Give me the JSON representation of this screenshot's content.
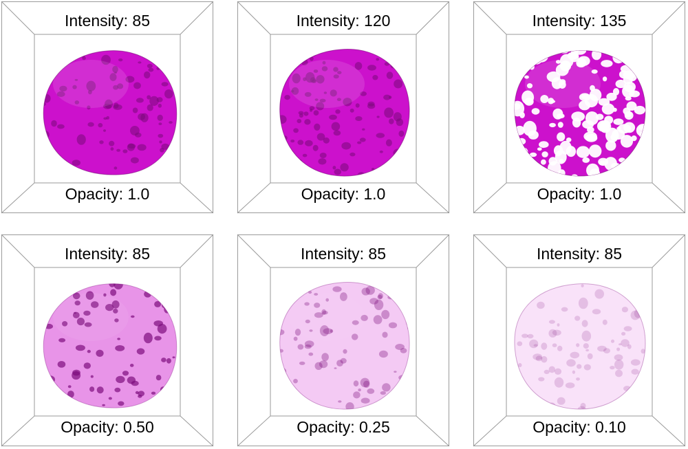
{
  "panels": [
    {
      "intensity_label": "Intensity: 85",
      "opacity_label": "Opacity: 1.0",
      "intensity": 85,
      "opacity": 1.0
    },
    {
      "intensity_label": "Intensity: 120",
      "opacity_label": "Opacity: 1.0",
      "intensity": 120,
      "opacity": 1.0
    },
    {
      "intensity_label": "Intensity: 135",
      "opacity_label": "Opacity: 1.0",
      "intensity": 135,
      "opacity": 1.0
    },
    {
      "intensity_label": "Intensity: 85",
      "opacity_label": "Opacity: 0.50",
      "intensity": 85,
      "opacity": 0.5
    },
    {
      "intensity_label": "Intensity: 85",
      "opacity_label": "Opacity: 0.25",
      "intensity": 85,
      "opacity": 0.25
    },
    {
      "intensity_label": "Intensity: 85",
      "opacity_label": "Opacity: 0.10",
      "intensity": 85,
      "opacity": 0.1
    }
  ],
  "colors": {
    "surface": "#cc11cc",
    "surface_dark": "#7a0a7a",
    "frame": "#9a9a9a"
  }
}
